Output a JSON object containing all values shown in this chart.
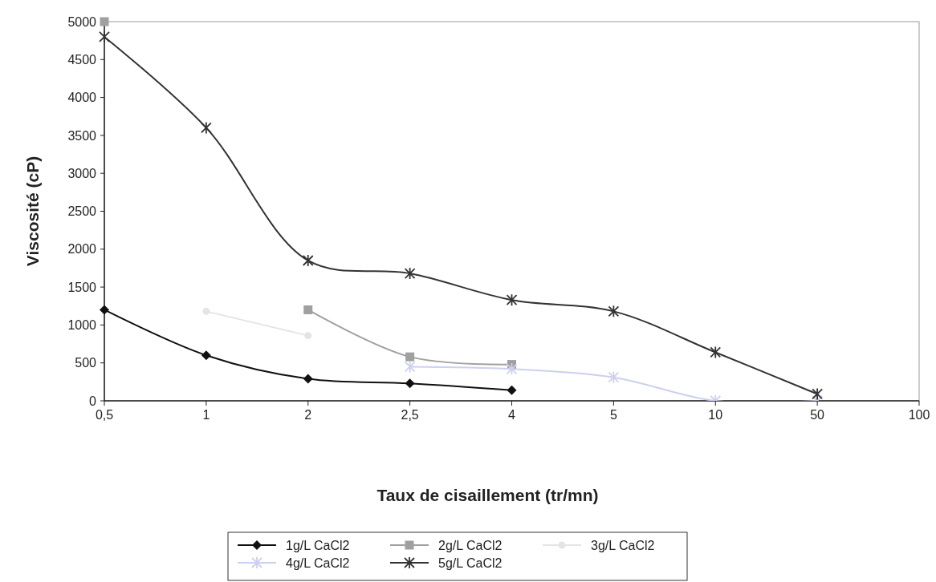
{
  "chart_data": {
    "type": "line",
    "xlabel": "Taux de cisaillement (tr/mn)",
    "ylabel": "Viscosité (cP)",
    "categories": [
      "0,5",
      "1",
      "2",
      "2,5",
      "4",
      "5",
      "10",
      "50",
      "100"
    ],
    "ylim": [
      0,
      5000
    ],
    "yticks": [
      0,
      500,
      1000,
      1500,
      2000,
      2500,
      3000,
      3500,
      4000,
      4500,
      5000
    ],
    "grid": false,
    "legend": "bottom",
    "series": [
      {
        "name": "1g/L CaCl2",
        "color": "#111111",
        "marker": "diamond",
        "values": [
          1200,
          600,
          290,
          230,
          140,
          null,
          null,
          null,
          null
        ]
      },
      {
        "name": "2g/L CaCl2",
        "color": "#a0a0a0",
        "marker": "square",
        "values": [
          5000,
          null,
          1200,
          580,
          480,
          null,
          null,
          null,
          null
        ]
      },
      {
        "name": "3g/L CaCl2",
        "color": "#e4e4e4",
        "marker": "circle",
        "values": [
          null,
          1180,
          860,
          null,
          null,
          null,
          null,
          null,
          null
        ]
      },
      {
        "name": "4g/L CaCl2",
        "color": "#cdd0ee",
        "marker": "cross",
        "values": [
          null,
          null,
          null,
          450,
          420,
          310,
          0,
          0,
          null
        ]
      },
      {
        "name": "5g/L CaCl2",
        "color": "#333333",
        "marker": "cross",
        "values": [
          4800,
          3600,
          1850,
          1680,
          1330,
          1180,
          640,
          90,
          null
        ]
      }
    ]
  }
}
